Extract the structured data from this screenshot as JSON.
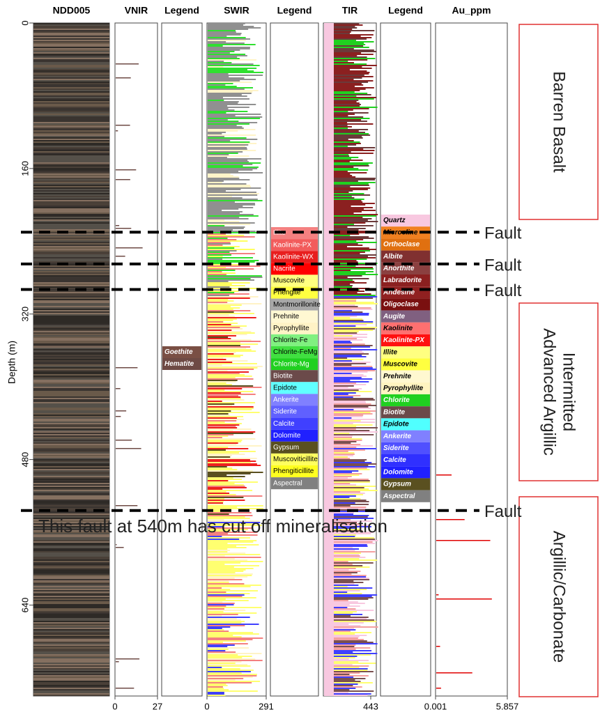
{
  "columns": [
    {
      "title": "NDD005"
    },
    {
      "title": "VNIR",
      "ticks": [
        0,
        27
      ]
    },
    {
      "title": "Legend"
    },
    {
      "title": "SWIR",
      "ticks": [
        0,
        291
      ]
    },
    {
      "title": "Legend"
    },
    {
      "title": "TIR",
      "ticks": [
        443
      ]
    },
    {
      "title": "Legend"
    },
    {
      "title": "Au_ppm",
      "ticks": [
        0.001,
        5.857
      ]
    }
  ],
  "depth_axis": {
    "label": "Depth (m)",
    "ylim": [
      0,
      740
    ],
    "ticks": [
      0,
      160,
      320,
      480,
      640
    ]
  },
  "vnir_legend": [
    {
      "name": "Goethite",
      "color": "#7a4f44"
    },
    {
      "name": "Hematite",
      "color": "#6e4a44"
    }
  ],
  "swir_legend": [
    {
      "name": "Illite",
      "color": "#f48080"
    },
    {
      "name": "Kaolinite-PX",
      "color": "#f25c5c"
    },
    {
      "name": "Kaolinite-WX",
      "color": "#e81e1e"
    },
    {
      "name": "Nacrite",
      "color": "#ff0000"
    },
    {
      "name": "Muscovite",
      "color": "#ffff80"
    },
    {
      "name": "Phengite",
      "color": "#ffff40"
    },
    {
      "name": "Montmorillonite",
      "color": "#a8a8a8"
    },
    {
      "name": "Prehnite",
      "color": "#fff8d2"
    },
    {
      "name": "Pyrophyllite",
      "color": "#fff3c6"
    },
    {
      "name": "Chlorite-Fe",
      "color": "#80f080"
    },
    {
      "name": "Chlorite-FeMg",
      "color": "#40e040"
    },
    {
      "name": "Chlorite-Mg",
      "color": "#20d020"
    },
    {
      "name": "Biotite",
      "color": "#6b4a4a"
    },
    {
      "name": "Epidote",
      "color": "#60ffff"
    },
    {
      "name": "Ankerite",
      "color": "#8080ff"
    },
    {
      "name": "Siderite",
      "color": "#6060ff"
    },
    {
      "name": "Calcite",
      "color": "#4040ff"
    },
    {
      "name": "Dolomite",
      "color": "#2020ff"
    },
    {
      "name": "Gypsum",
      "color": "#5a5020"
    },
    {
      "name": "Muscoviticillite",
      "color": "#ffff60"
    },
    {
      "name": "Phengiticillite",
      "color": "#ffff20"
    },
    {
      "name": "Aspectral",
      "color": "#808080"
    }
  ],
  "tir_legend": [
    {
      "name": "Quartz",
      "color": "#f8c8e0"
    },
    {
      "name": "Microcline",
      "color": "#f08020"
    },
    {
      "name": "Orthoclase",
      "color": "#e07010"
    },
    {
      "name": "Albite",
      "color": "#803030"
    },
    {
      "name": "Anorthite",
      "color": "#8b4040"
    },
    {
      "name": "Labradorite",
      "color": "#8b2020"
    },
    {
      "name": "Andesine",
      "color": "#902020"
    },
    {
      "name": "Oligoclase",
      "color": "#7a1010"
    },
    {
      "name": "Augite",
      "color": "#806080"
    },
    {
      "name": "Kaolinite",
      "color": "#ff7070"
    },
    {
      "name": "Kaolinite-PX",
      "color": "#ff1010"
    },
    {
      "name": "Illite",
      "color": "#ffff80"
    },
    {
      "name": "Muscovite",
      "color": "#ffff40"
    },
    {
      "name": "Prehnite",
      "color": "#fff8d0"
    },
    {
      "name": "Pyrophyllite",
      "color": "#fff4c0"
    },
    {
      "name": "Chlorite",
      "color": "#20d020"
    },
    {
      "name": "Biotite",
      "color": "#6b4a4a"
    },
    {
      "name": "Epidote",
      "color": "#50ffff"
    },
    {
      "name": "Ankerite",
      "color": "#8080ff"
    },
    {
      "name": "Siderite",
      "color": "#5050ff"
    },
    {
      "name": "Calcite",
      "color": "#3030ff"
    },
    {
      "name": "Dolomite",
      "color": "#2020ff"
    },
    {
      "name": "Gypsum",
      "color": "#5a5020"
    },
    {
      "name": "Aspectral",
      "color": "#808080"
    }
  ],
  "faults": [
    {
      "depth": 230,
      "label": "Fault"
    },
    {
      "depth": 265,
      "label": "Fault"
    },
    {
      "depth": 293,
      "label": "Fault"
    },
    {
      "depth": 536,
      "label": "Fault"
    }
  ],
  "annotation": "This fault at 540m has cut off mineralisation",
  "zones": [
    {
      "lines": [
        "Barren Basalt"
      ]
    },
    {
      "lines": [
        "Intermitted",
        "Advanced Argillic"
      ]
    },
    {
      "lines": [
        "Argillic/Carbonate"
      ]
    }
  ]
}
